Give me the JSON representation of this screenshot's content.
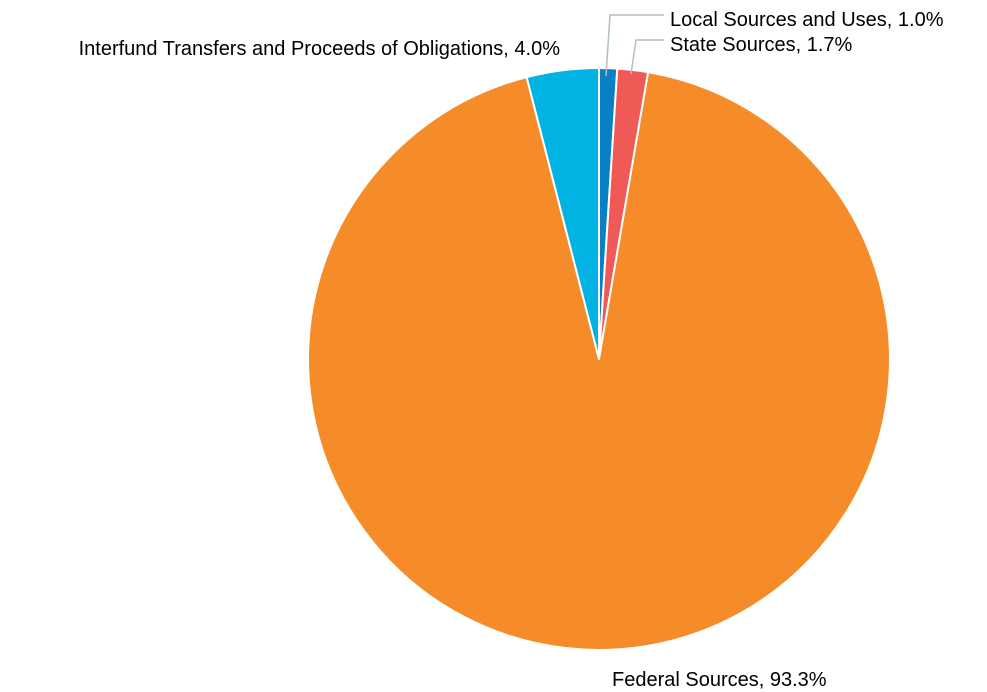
{
  "chart_data": {
    "type": "pie",
    "title": "",
    "slices": [
      {
        "label": "Local Sources and Uses",
        "value": 1.0,
        "display": "Local Sources and Uses, 1.0%",
        "color": "#0a80c4"
      },
      {
        "label": "State Sources",
        "value": 1.7,
        "display": "State Sources, 1.7%",
        "color": "#ef5a56"
      },
      {
        "label": "Federal Sources",
        "value": 93.3,
        "display": "Federal Sources, 93.3%",
        "color": "#f58b29"
      },
      {
        "label": "Interfund Transfers and Proceeds of Obligations",
        "value": 4.0,
        "display": "Interfund Transfers and Proceeds of Obligations, 4.0%",
        "color": "#00b3e3"
      }
    ],
    "slice_border_color": "#ffffff",
    "leader_line_color": "#b0bec5",
    "grid": false,
    "legend": "none (slices labeled directly)"
  }
}
